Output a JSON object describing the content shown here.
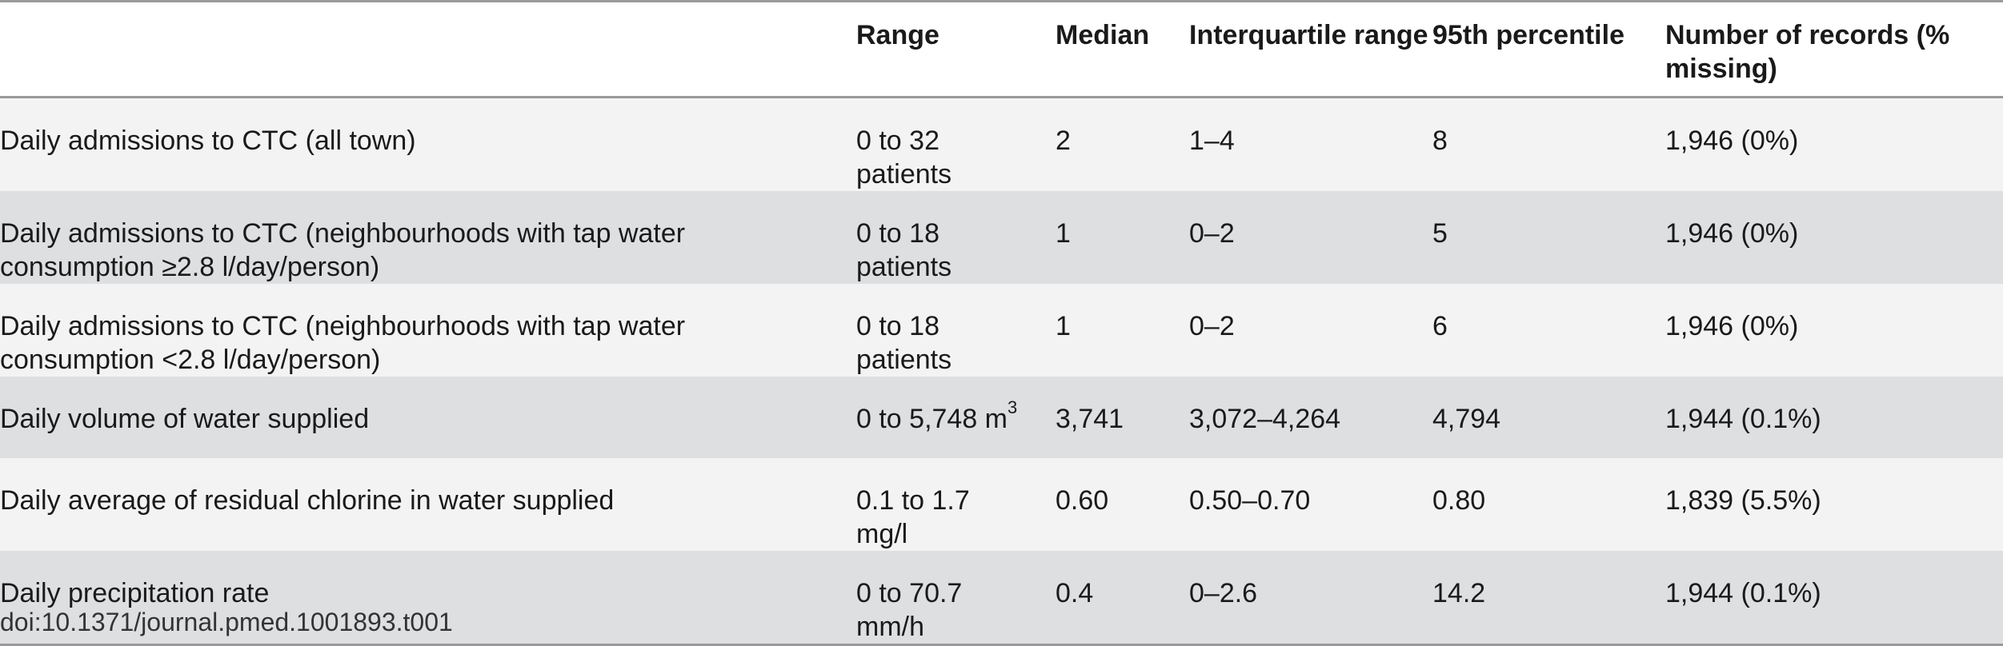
{
  "table": {
    "headers": {
      "label": "",
      "range": "Range",
      "median": "Median",
      "iqr": "Interquartile range",
      "p95": "95th percentile",
      "records": "Number of records (% missing)"
    },
    "rows": [
      {
        "label": "Daily admissions to CTC (all town)",
        "range": "0 to 32 patients",
        "range_sup": "",
        "median": "2",
        "iqr": "1–4",
        "p95": "8",
        "records": "1,946 (0%)"
      },
      {
        "label": "Daily admissions to CTC (neighbourhoods with tap water consumption ≥2.8 l/day/person)",
        "range": "0 to 18 patients",
        "range_sup": "",
        "median": "1",
        "iqr": "0–2",
        "p95": "5",
        "records": "1,946 (0%)"
      },
      {
        "label": "Daily admissions to CTC (neighbourhoods with tap water consumption <2.8 l/day/person)",
        "range": "0 to 18 patients",
        "range_sup": "",
        "median": "1",
        "iqr": "0–2",
        "p95": "6",
        "records": "1,946 (0%)"
      },
      {
        "label": "Daily volume of water supplied",
        "range": "0 to 5,748 m",
        "range_sup": "3",
        "median": "3,741",
        "iqr": "3,072–4,264",
        "p95": "4,794",
        "records": "1,944 (0.1%)"
      },
      {
        "label": "Daily average of residual chlorine in water supplied",
        "range": "0.1 to 1.7 mg/l",
        "range_sup": "",
        "median": "0.60",
        "iqr": "0.50–0.70",
        "p95": "0.80",
        "records": "1,839 (5.5%)"
      },
      {
        "label": "Daily precipitation rate",
        "range": "0 to 70.7 mm/h",
        "range_sup": "",
        "median": "0.4",
        "iqr": "0–2.6",
        "p95": "14.2",
        "records": "1,944 (0.1%)"
      }
    ]
  },
  "footer": {
    "doi": "doi:10.1371/journal.pmed.1001893.t001"
  }
}
